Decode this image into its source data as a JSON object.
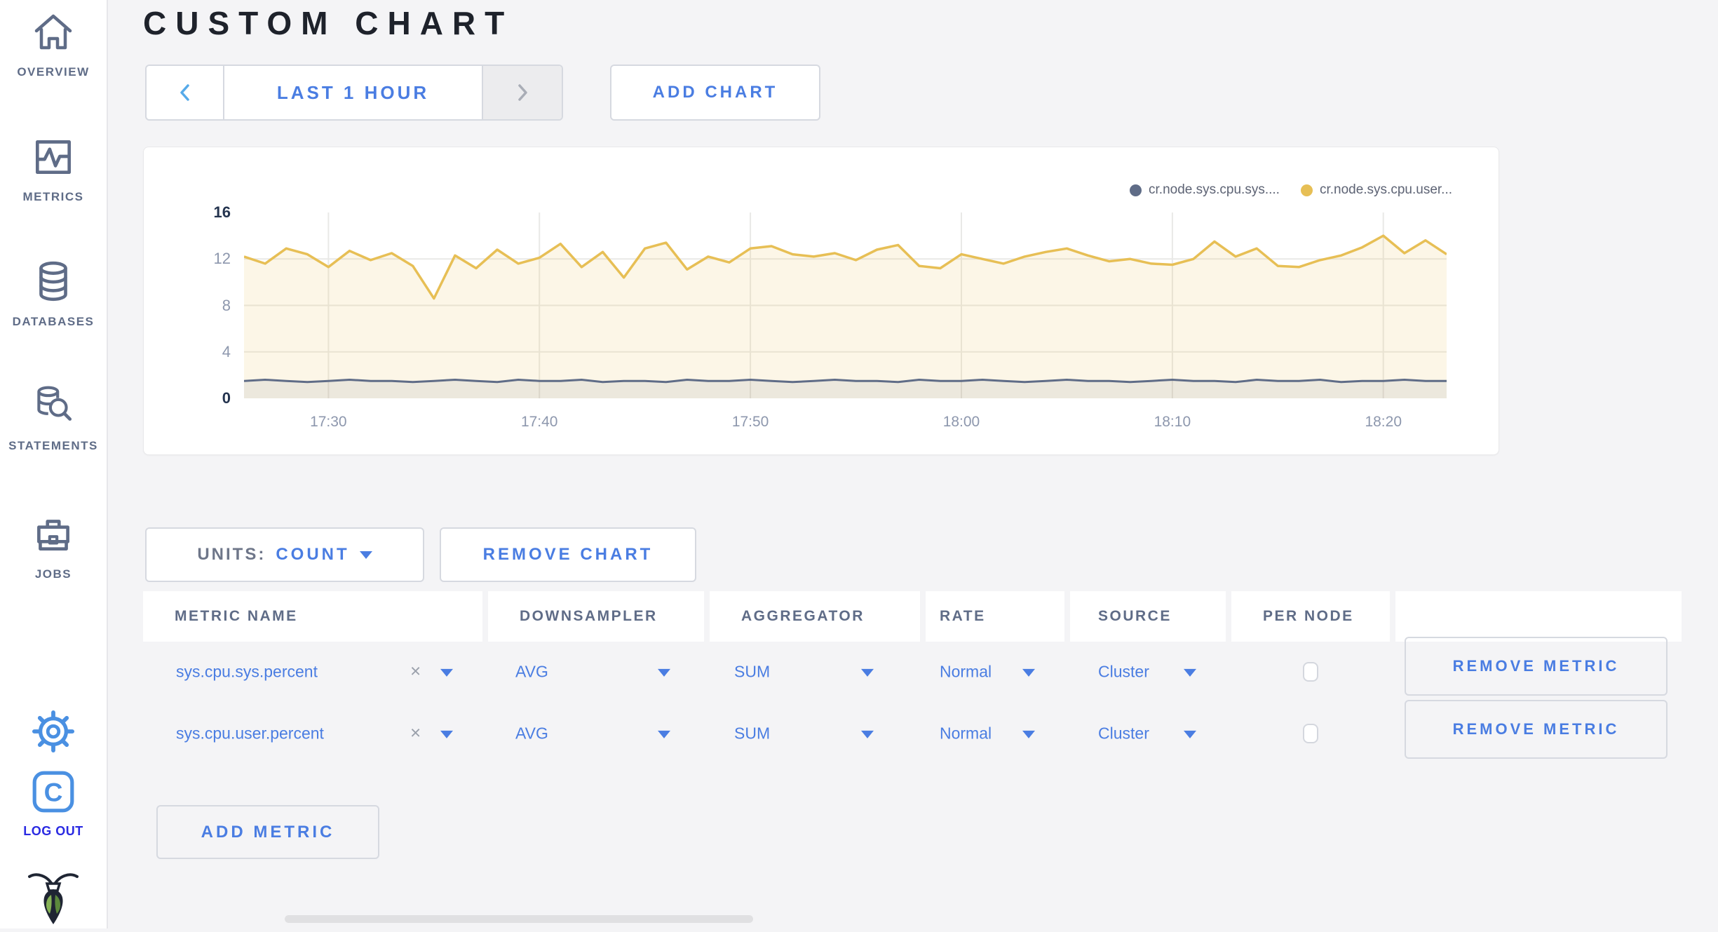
{
  "sidebar": {
    "items": [
      {
        "label": "OVERVIEW"
      },
      {
        "label": "METRICS"
      },
      {
        "label": "DATABASES"
      },
      {
        "label": "STATEMENTS"
      },
      {
        "label": "JOBS"
      }
    ],
    "logout_label": "LOG OUT",
    "logo_letter": "C"
  },
  "header": {
    "title": "CUSTOM CHART"
  },
  "toolbar": {
    "time_range_label": "LAST 1 HOUR",
    "add_chart_label": "ADD CHART"
  },
  "chart_controls": {
    "units_label": "UNITS:",
    "units_value": "COUNT",
    "remove_chart_label": "REMOVE CHART",
    "add_metric_label": "ADD METRIC"
  },
  "table": {
    "headers": [
      "METRIC NAME",
      "DOWNSAMPLER",
      "AGGREGATOR",
      "RATE",
      "SOURCE",
      "PER NODE"
    ],
    "rows": [
      {
        "metric_name": "sys.cpu.sys.percent",
        "clear_label": "×",
        "downsampler": "AVG",
        "aggregator": "SUM",
        "rate": "Normal",
        "source": "Cluster",
        "per_node_checked": false,
        "remove_label": "REMOVE METRIC"
      },
      {
        "metric_name": "sys.cpu.user.percent",
        "clear_label": "×",
        "downsampler": "AVG",
        "aggregator": "SUM",
        "rate": "Normal",
        "source": "Cluster",
        "per_node_checked": false,
        "remove_label": "REMOVE METRIC"
      }
    ]
  },
  "chart_data": {
    "type": "line",
    "title": "",
    "ylim": [
      0,
      16
    ],
    "y_ticks": [
      0,
      4,
      8,
      12,
      16
    ],
    "x_tick_labels": [
      "17:30",
      "17:40",
      "17:50",
      "18:00",
      "18:10",
      "18:20"
    ],
    "x_tick_indices": [
      4,
      14,
      24,
      34,
      44,
      54
    ],
    "grid": true,
    "legend_position": "top-right",
    "x_start": "17:26",
    "x_end": "18:23",
    "x_step_minutes": 1,
    "series": [
      {
        "name": "cr.node.sys.cpu.sys....",
        "color": "#5f6c87",
        "fill": "rgba(95,108,135,0.10)",
        "values": [
          1.5,
          1.6,
          1.5,
          1.4,
          1.5,
          1.6,
          1.5,
          1.5,
          1.4,
          1.5,
          1.6,
          1.5,
          1.4,
          1.6,
          1.5,
          1.5,
          1.6,
          1.4,
          1.5,
          1.5,
          1.4,
          1.6,
          1.5,
          1.5,
          1.6,
          1.5,
          1.4,
          1.5,
          1.6,
          1.5,
          1.5,
          1.4,
          1.6,
          1.5,
          1.5,
          1.6,
          1.5,
          1.4,
          1.5,
          1.6,
          1.5,
          1.5,
          1.4,
          1.5,
          1.6,
          1.5,
          1.5,
          1.4,
          1.6,
          1.5,
          1.5,
          1.6,
          1.4,
          1.5,
          1.5,
          1.6,
          1.5,
          1.5
        ]
      },
      {
        "name": "cr.node.sys.cpu.user...",
        "color": "#e7bf55",
        "fill": "rgba(231,191,85,0.14)",
        "values": [
          12.2,
          11.6,
          12.9,
          12.4,
          11.3,
          12.7,
          11.9,
          12.5,
          11.4,
          8.6,
          12.3,
          11.2,
          12.8,
          11.6,
          12.1,
          13.3,
          11.3,
          12.6,
          10.4,
          12.9,
          13.4,
          11.1,
          12.2,
          11.7,
          12.9,
          13.1,
          12.4,
          12.2,
          12.5,
          11.9,
          12.8,
          13.2,
          11.4,
          11.2,
          12.4,
          12.0,
          11.6,
          12.2,
          12.6,
          12.9,
          12.3,
          11.8,
          12.0,
          11.6,
          11.5,
          12.0,
          13.5,
          12.2,
          12.9,
          11.4,
          11.3,
          11.9,
          12.3,
          13.0,
          14.0,
          12.5,
          13.6,
          12.4
        ]
      }
    ]
  }
}
